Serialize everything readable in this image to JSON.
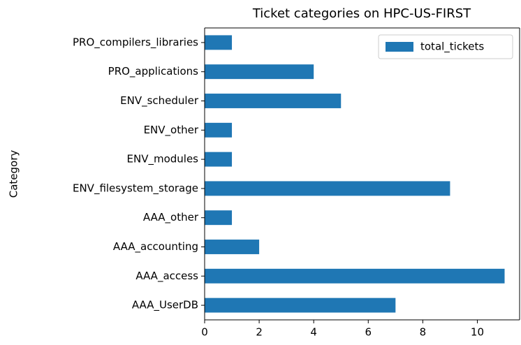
{
  "chart_data": {
    "type": "barh",
    "title": "Ticket categories on HPC-US-FIRST",
    "ylabel": "Category",
    "categories": [
      "AAA_UserDB",
      "AAA_access",
      "AAA_accounting",
      "AAA_other",
      "ENV_filesystem_storage",
      "ENV_modules",
      "ENV_other",
      "ENV_scheduler",
      "PRO_applications",
      "PRO_compilers_libraries"
    ],
    "series": [
      {
        "name": "total_tickets",
        "color": "#1f77b4",
        "values": [
          7,
          11,
          2,
          1,
          9,
          1,
          1,
          5,
          4,
          1
        ]
      }
    ],
    "xlim": [
      0,
      11.55
    ],
    "xticks": [
      0,
      2,
      4,
      6,
      8,
      10
    ],
    "legend": "upper right"
  }
}
